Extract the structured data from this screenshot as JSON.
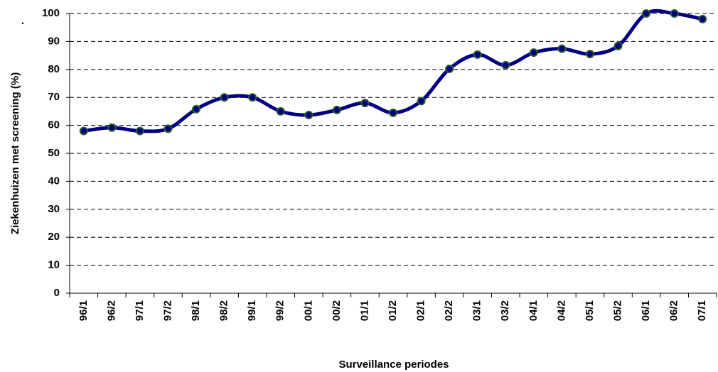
{
  "chart_data": {
    "type": "line",
    "annotation": ".",
    "ylabel": "Ziekenhuizen met screening (%)",
    "xlabel": "Surveillance periodes",
    "categories": [
      "96/1",
      "96/2",
      "97/1",
      "97/2",
      "98/1",
      "98/2",
      "99/1",
      "99/2",
      "00/1",
      "00/2",
      "01/1",
      "01/2",
      "02/1",
      "02/2",
      "03/1",
      "03/2",
      "04/1",
      "04/2",
      "05/1",
      "05/2",
      "06/1",
      "06/2",
      "07/1"
    ],
    "values": [
      58,
      59.2,
      58,
      58.8,
      65.8,
      70,
      70,
      65,
      63.7,
      65.5,
      68,
      64.5,
      68.7,
      80.2,
      85.3,
      81.5,
      86,
      87.4,
      85.5,
      88.4,
      100,
      100,
      98
    ],
    "color": "#000080",
    "marker_color": "#2e5e2e",
    "ylim": [
      0,
      100
    ],
    "yticks": [
      0,
      10,
      20,
      30,
      40,
      50,
      60,
      70,
      80,
      90,
      100
    ],
    "grid": true,
    "smooth": true
  }
}
